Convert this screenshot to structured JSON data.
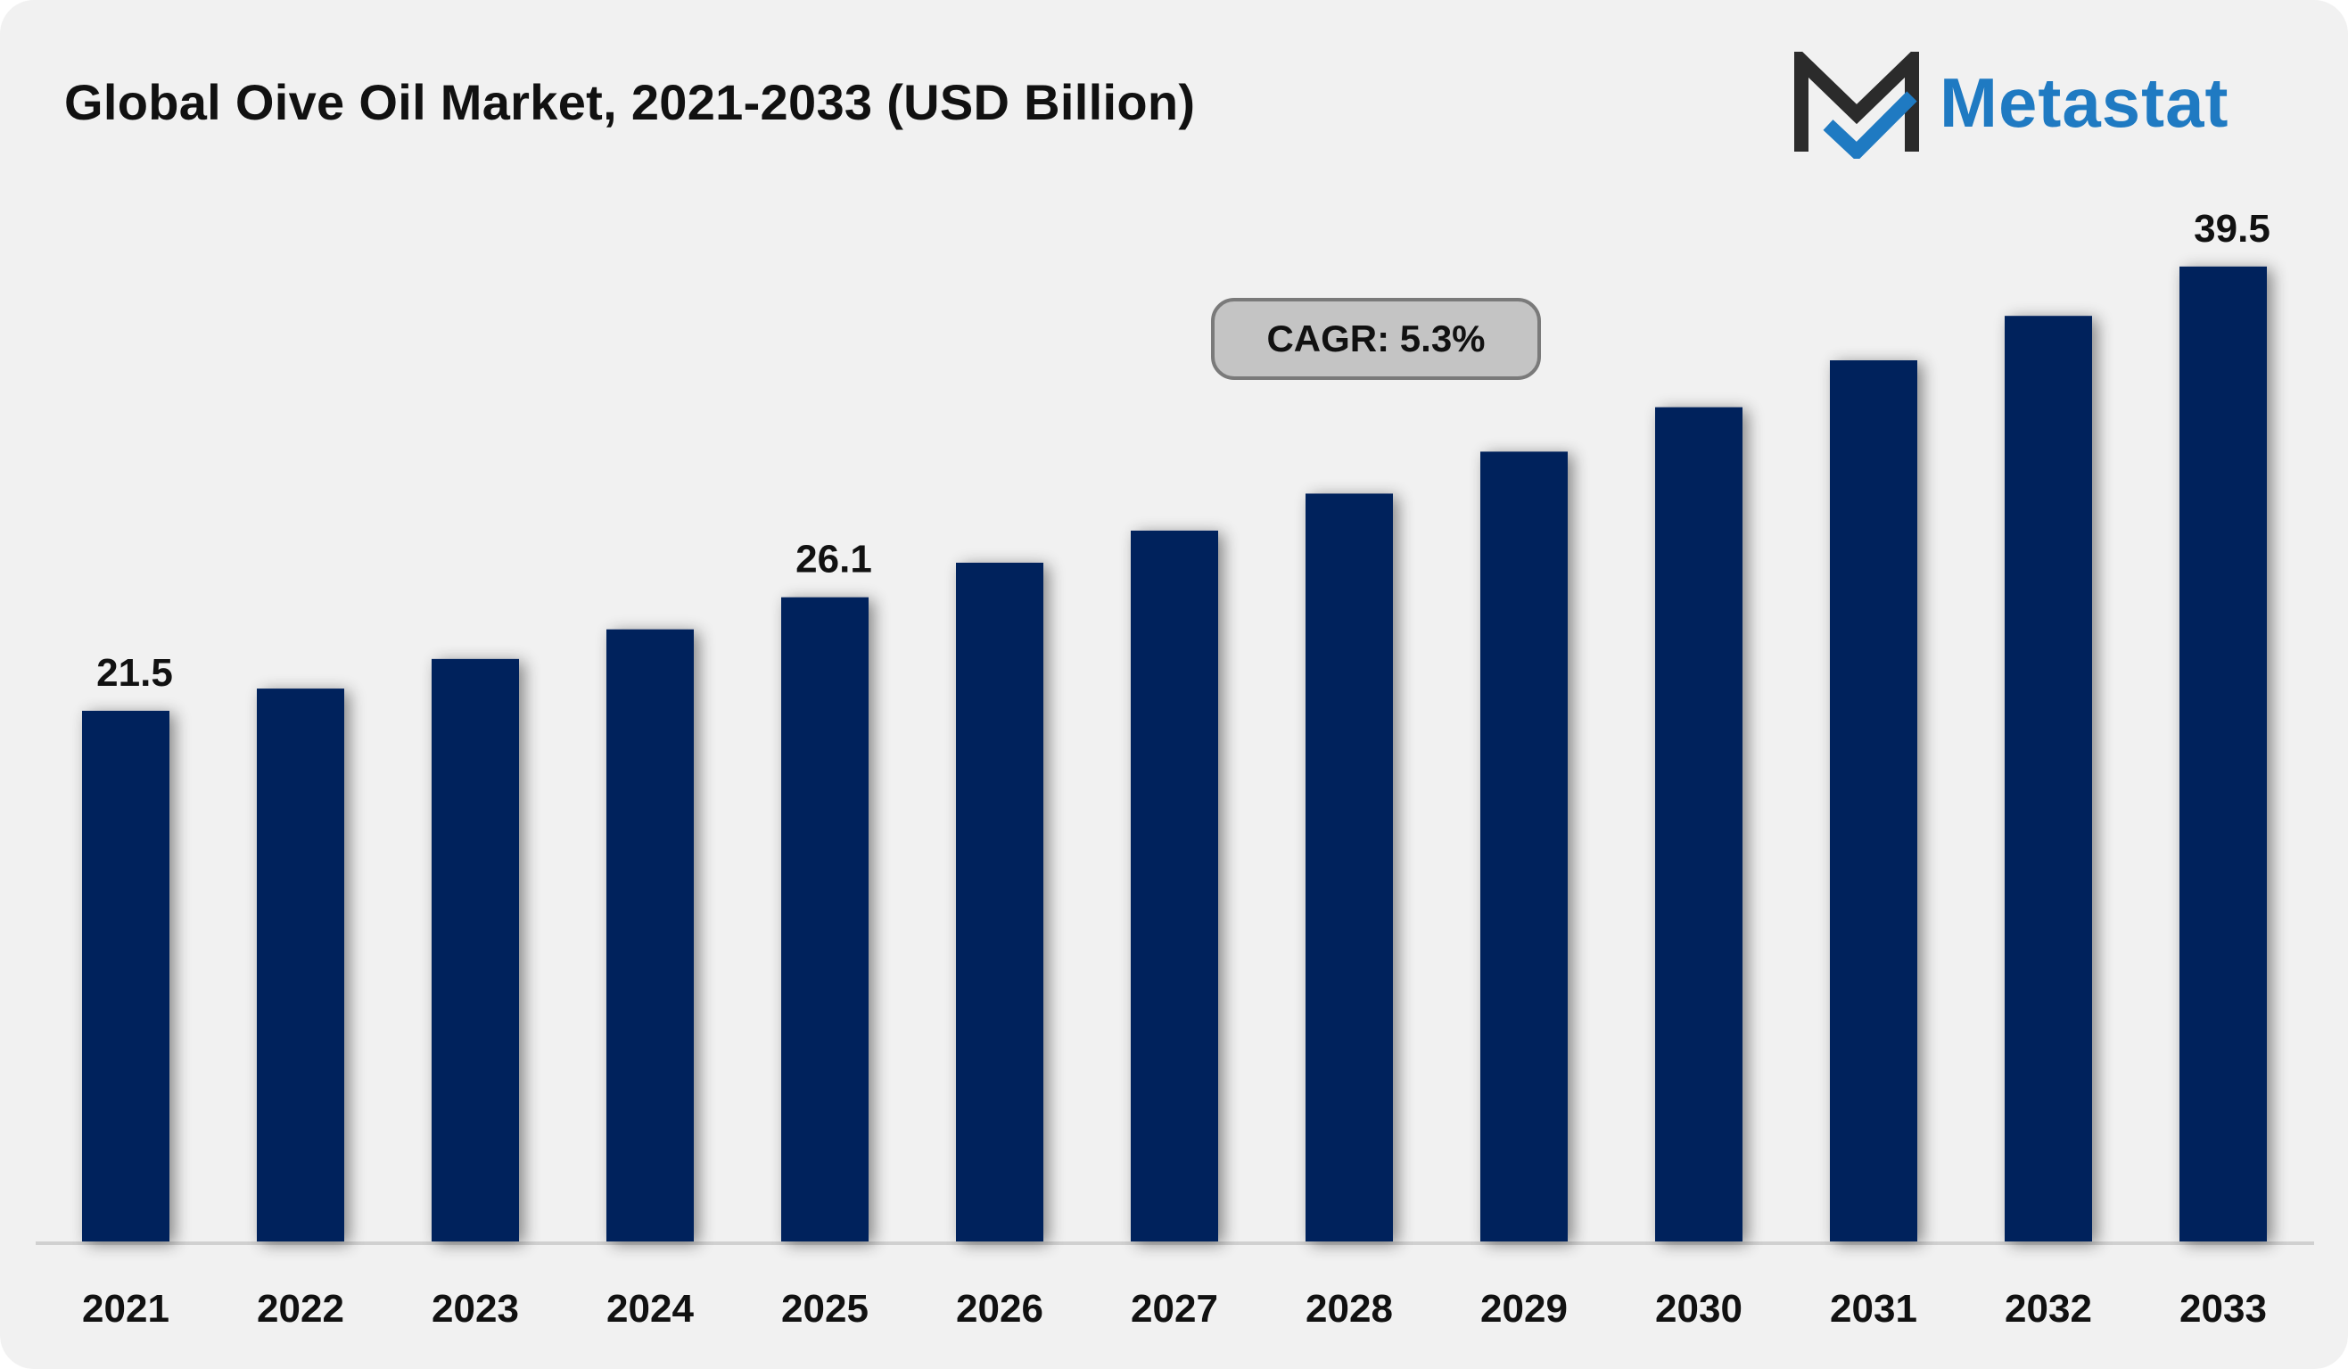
{
  "title": "Global Oive Oil Market, 2021-2033 (USD Billion)",
  "logo": {
    "text": "Metastat",
    "icon": "metastat-m-logo-icon"
  },
  "cagr_label": "CAGR: 5.3%",
  "colors": {
    "bar": "#02205b",
    "logo_dark": "#2b2b2b",
    "logo_blue": "#1f7ac2",
    "background": "#f1f1f1"
  },
  "chart_data": {
    "type": "bar",
    "title": "Global Oive Oil Market, 2021-2033 (USD Billion)",
    "categories": [
      "2021",
      "2022",
      "2023",
      "2024",
      "2025",
      "2026",
      "2027",
      "2028",
      "2029",
      "2030",
      "2031",
      "2032",
      "2033"
    ],
    "values": [
      21.5,
      22.4,
      23.6,
      24.8,
      26.1,
      27.5,
      28.8,
      30.3,
      32.0,
      33.8,
      35.7,
      37.5,
      39.5
    ],
    "data_labels": [
      {
        "category": "2021",
        "text": "21.5"
      },
      {
        "category": "2025",
        "text": "26.1"
      },
      {
        "category": "2033",
        "text": "39.5"
      }
    ],
    "ylim": [
      0,
      40
    ],
    "xlabel": "",
    "ylabel": "",
    "grid": false,
    "legend": "none",
    "annotations": [
      "CAGR: 5.3%"
    ]
  }
}
